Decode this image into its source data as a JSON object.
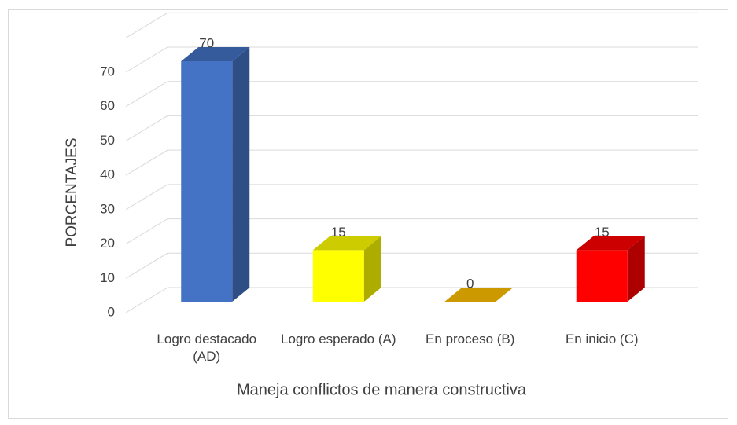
{
  "chart_data": {
    "type": "bar3d",
    "x_label": "Maneja conflictos de manera constructiva",
    "y_label": "PORCENTAJES",
    "categories": [
      "Logro destacado (AD)",
      "Logro esperado (A)",
      "En proceso (B)",
      "En inicio (C)"
    ],
    "values": [
      70,
      15,
      0,
      15
    ],
    "colors": [
      "#4472c4",
      "#ffff00",
      "#ffc000",
      "#ff0000"
    ],
    "ylim": [
      0,
      80
    ],
    "yticks": [
      0,
      10,
      20,
      30,
      40,
      50,
      60,
      70
    ],
    "grid": true
  }
}
